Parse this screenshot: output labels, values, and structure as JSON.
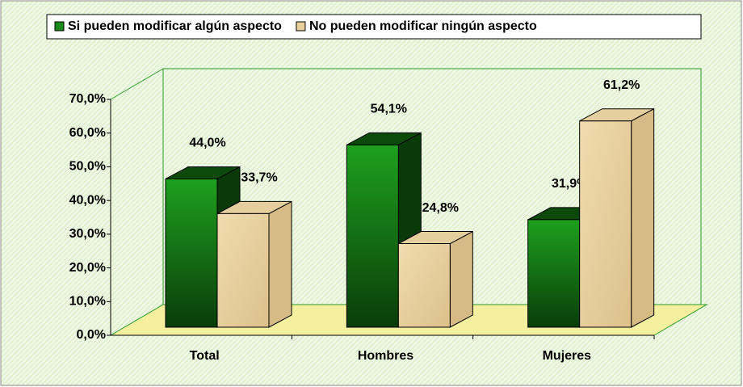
{
  "chart_data": {
    "type": "bar3d",
    "categories": [
      "Total",
      "Hombres",
      "Mujeres"
    ],
    "series": [
      {
        "name": "Si pueden modificar algún aspecto",
        "color": "#1a8a1a",
        "values": [
          44.0,
          54.1,
          31.9
        ],
        "value_labels": [
          "44,0%",
          "54,1%",
          "31,9%"
        ]
      },
      {
        "name": "No pueden modificar ningún aspecto",
        "color": "#e8cf9c",
        "values": [
          33.7,
          24.8,
          61.2
        ],
        "value_labels": [
          "33,7%",
          "24,8%",
          "61,2%"
        ]
      }
    ],
    "ylim": [
      0,
      70
    ],
    "yticks": [
      {
        "value": 0,
        "label": "0,0%"
      },
      {
        "value": 10,
        "label": "10,0%"
      },
      {
        "value": 20,
        "label": "20,0%"
      },
      {
        "value": 30,
        "label": "30,0%"
      },
      {
        "value": 40,
        "label": "40,0%"
      },
      {
        "value": 50,
        "label": "50,0%"
      },
      {
        "value": 60,
        "label": "60,0%"
      },
      {
        "value": 70,
        "label": "70,0%"
      }
    ],
    "legend": "top"
  }
}
